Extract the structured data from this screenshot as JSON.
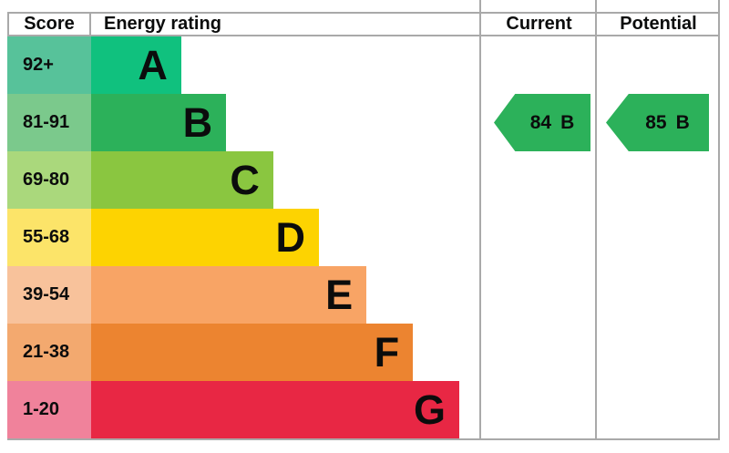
{
  "chart_data": {
    "type": "bar",
    "title": "Energy efficiency rating chart (EPC)",
    "header": {
      "score": "Score",
      "rating": "Energy rating",
      "current": "Current",
      "potential": "Potential"
    },
    "bands": [
      {
        "letter": "A",
        "score_range": "92+",
        "bar_width_pct": 23.1,
        "bar_color": "#10c17e",
        "score_bg": "#57c29a"
      },
      {
        "letter": "B",
        "score_range": "81-91",
        "bar_width_pct": 34.6,
        "bar_color": "#2cb15a",
        "score_bg": "#7bc98c"
      },
      {
        "letter": "C",
        "score_range": "69-80",
        "bar_width_pct": 46.7,
        "bar_color": "#8ac640",
        "score_bg": "#aad87c"
      },
      {
        "letter": "D",
        "score_range": "55-68",
        "bar_width_pct": 58.4,
        "bar_color": "#fdd301",
        "score_bg": "#fce469"
      },
      {
        "letter": "E",
        "score_range": "39-54",
        "bar_width_pct": 70.6,
        "bar_color": "#f8a465",
        "score_bg": "#f8c29b"
      },
      {
        "letter": "F",
        "score_range": "21-38",
        "bar_width_pct": 82.5,
        "bar_color": "#ec8430",
        "score_bg": "#f3a96f"
      },
      {
        "letter": "G",
        "score_range": "1-20",
        "bar_width_pct": 94.4,
        "bar_color": "#e82744",
        "score_bg": "#f0829b"
      }
    ],
    "markers": [
      {
        "column": "current",
        "value": "84",
        "band": "B",
        "band_index": 1,
        "color": "#2cb15a"
      },
      {
        "column": "potential",
        "value": "85",
        "band": "B",
        "band_index": 1,
        "color": "#2cb15a"
      }
    ],
    "layout": {
      "border_color": "#a9a9a9",
      "text_color": "#0b0c0c",
      "legend": "off",
      "grid": "off"
    }
  }
}
